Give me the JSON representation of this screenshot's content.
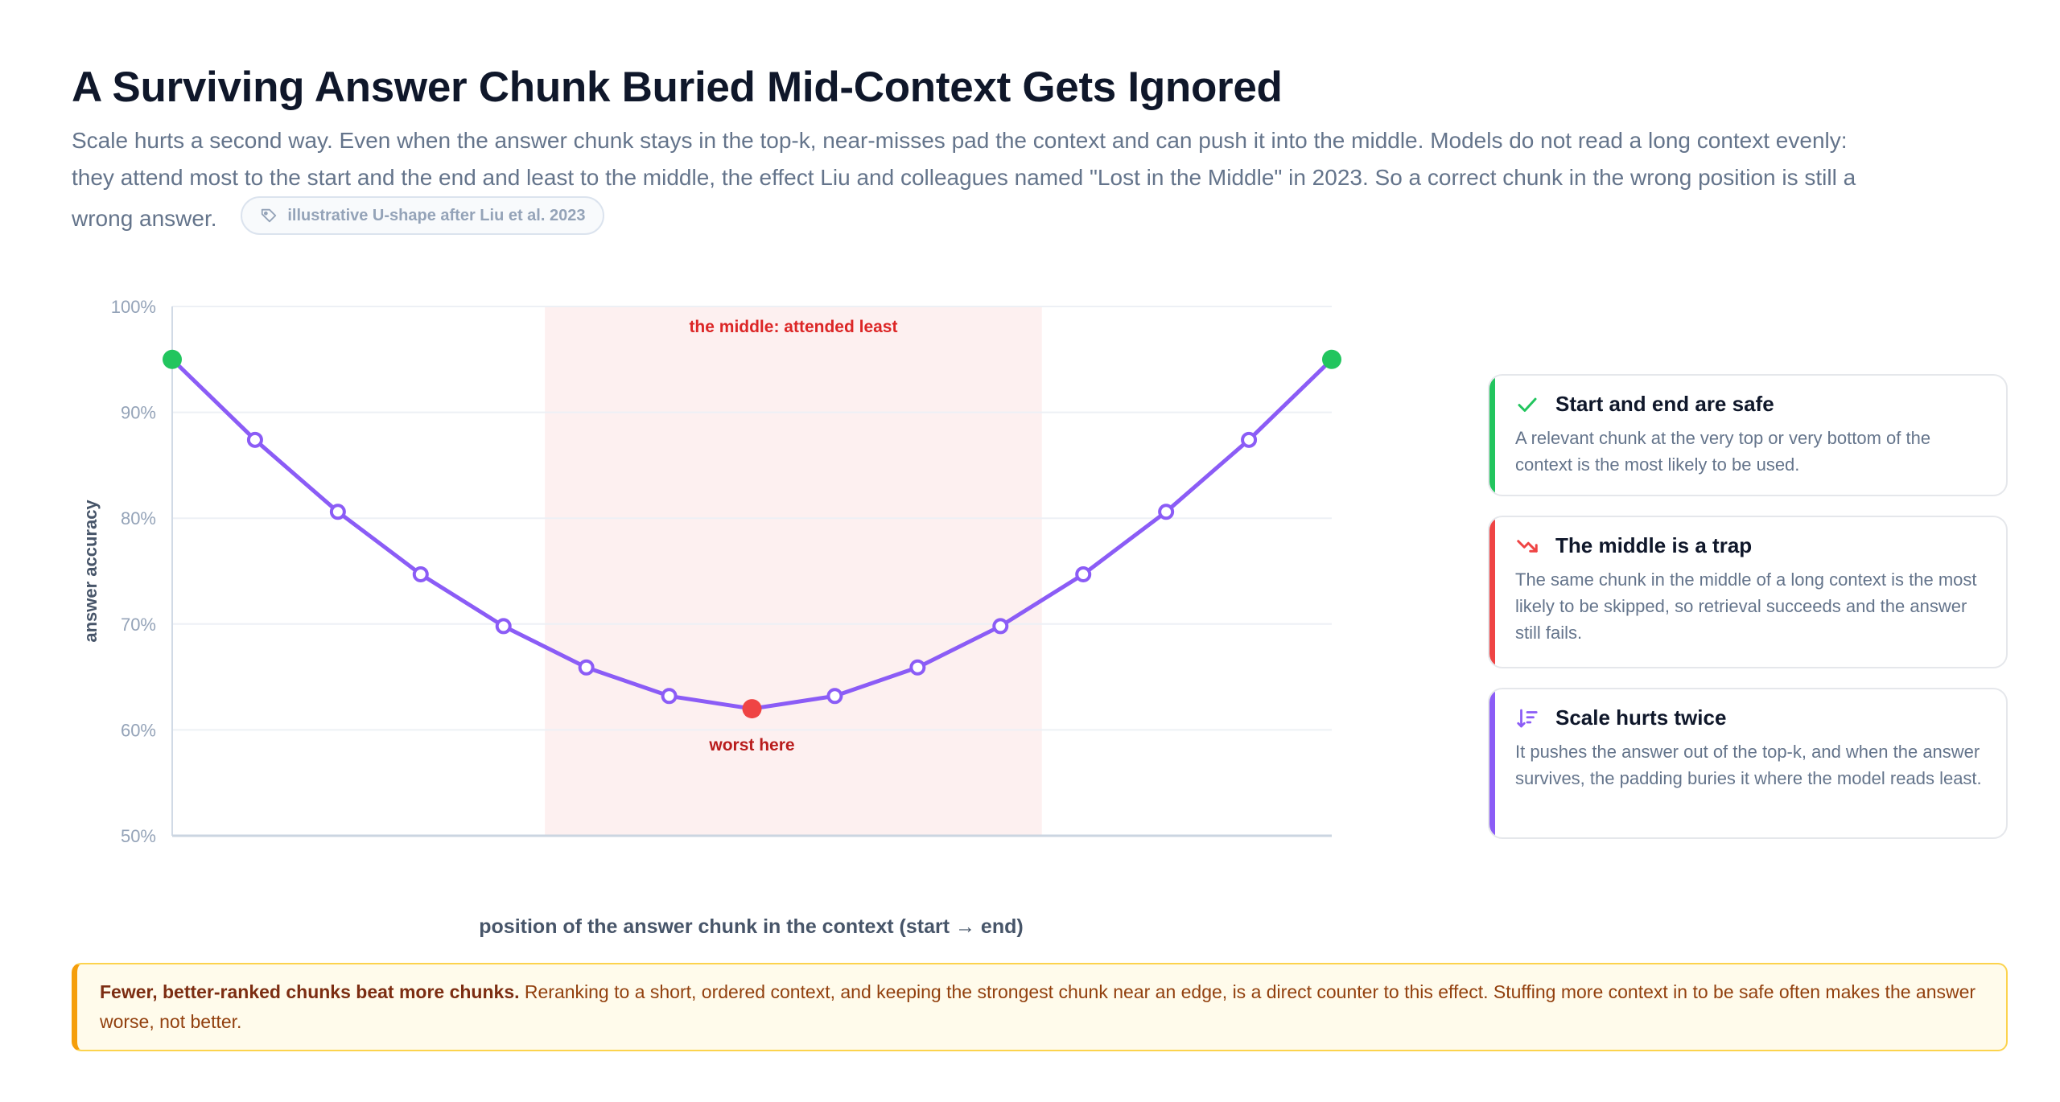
{
  "title": "A Surviving Answer Chunk Buried Mid-Context Gets Ignored",
  "subtitle": "Scale hurts a second way. Even when the answer chunk stays in the top-k, near-misses pad the context and can push it into the middle. Models do not read a long context evenly: they attend most to the start and the end and least to the middle, the effect Liu and colleagues named \"Lost in the Middle\" in 2023. So a correct chunk in the wrong position is still a wrong answer.",
  "source_pill": {
    "icon": "tag-icon",
    "label": "illustrative U-shape after Liu et al. 2023"
  },
  "chart_data": {
    "type": "line",
    "title": "",
    "xlabel": "position of the answer chunk in the context (start → end)",
    "ylabel": "answer accuracy",
    "y_ticks": [
      "50%",
      "60%",
      "70%",
      "80%",
      "90%",
      "100%"
    ],
    "ylim": [
      50,
      100
    ],
    "x": [
      0,
      1,
      2,
      3,
      4,
      5,
      6,
      7,
      8,
      9,
      10,
      11,
      12,
      13,
      14
    ],
    "xlim": [
      0,
      14
    ],
    "grid": true,
    "series": [
      {
        "values": [
          95,
          87.4,
          80.6,
          74.7,
          69.8,
          65.9,
          63.2,
          62,
          63.2,
          65.9,
          69.8,
          74.7,
          80.6,
          87.4,
          95
        ],
        "color": "#8b5cf6"
      }
    ],
    "highlight_points": [
      {
        "index": 0,
        "color": "#22c55e"
      },
      {
        "index": 7,
        "color": "#ef4444"
      },
      {
        "index": 14,
        "color": "#22c55e"
      }
    ],
    "shaded_band": {
      "x_from": 4.5,
      "x_to": 10.5,
      "color": "#fdf0f0",
      "label": "the middle: attended least",
      "label_color": "#dc2626"
    },
    "annotation": {
      "index": 7,
      "text": "worst here",
      "color": "#b91c1c"
    }
  },
  "cards": [
    {
      "icon": "check-icon",
      "accent": "#22c55e",
      "title": "Start and end are safe",
      "body": "A relevant chunk at the very top or very bottom of the context is the most likely to be used."
    },
    {
      "icon": "trend-down-icon",
      "accent": "#ef4444",
      "title": "The middle is a trap",
      "body": "The same chunk in the middle of a long context is the most likely to be skipped, so retrieval succeeds and the answer still fails."
    },
    {
      "icon": "sort-descending-icon",
      "accent": "#8b5cf6",
      "title": "Scale hurts twice",
      "body": "It pushes the answer out of the top-k, and when the answer survives, the padding buries it where the model reads least."
    }
  ],
  "callout": {
    "strong": "Fewer, better-ranked chunks beat more chunks.",
    "text": " Reranking to a short, ordered context, and keeping the strongest chunk near an edge, is a direct counter to this effect. Stuffing more context in to be safe often makes the answer worse, not better."
  }
}
